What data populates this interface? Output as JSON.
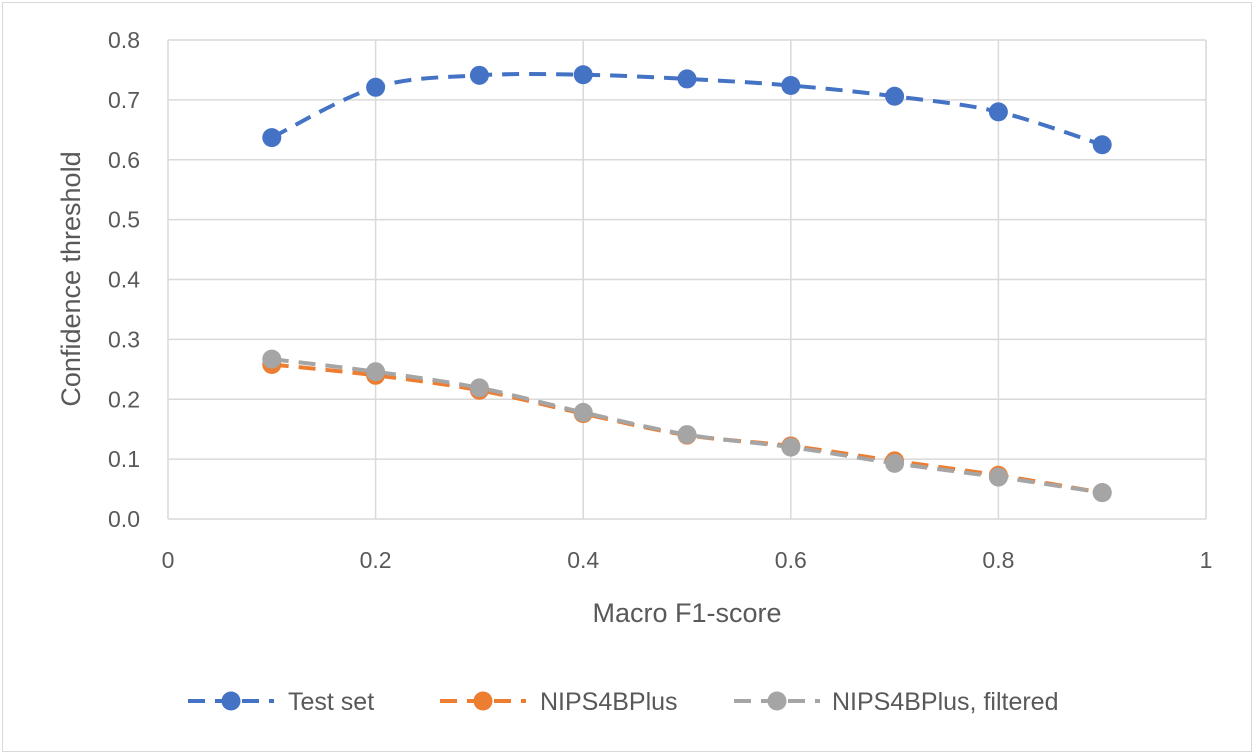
{
  "chart_data": {
    "type": "line",
    "xlabel": "Macro F1-score",
    "ylabel": "Confidence threshold",
    "xlim": [
      0,
      1
    ],
    "ylim": [
      0.0,
      0.8
    ],
    "x_ticks": [
      "0",
      "0.2",
      "0.4",
      "0.6",
      "0.8",
      "1"
    ],
    "y_ticks": [
      "0.0",
      "0.1",
      "0.2",
      "0.3",
      "0.4",
      "0.5",
      "0.6",
      "0.7",
      "0.8"
    ],
    "grid": true,
    "legend_position": "bottom",
    "x": [
      0.1,
      0.2,
      0.3,
      0.4,
      0.5,
      0.6,
      0.7,
      0.8,
      0.9
    ],
    "series": [
      {
        "name": "Test set",
        "color": "#4472c4",
        "values": [
          0.637,
          0.721,
          0.741,
          0.742,
          0.735,
          0.724,
          0.706,
          0.68,
          0.625
        ]
      },
      {
        "name": "NIPS4BPlus",
        "color": "#ed7d31",
        "values": [
          0.258,
          0.24,
          0.215,
          0.176,
          0.14,
          0.122,
          0.097,
          0.073,
          0.044
        ]
      },
      {
        "name": "NIPS4BPlus, filtered",
        "color": "#a5a5a5",
        "values": [
          0.267,
          0.246,
          0.219,
          0.178,
          0.141,
          0.12,
          0.093,
          0.07,
          0.044
        ]
      }
    ]
  }
}
